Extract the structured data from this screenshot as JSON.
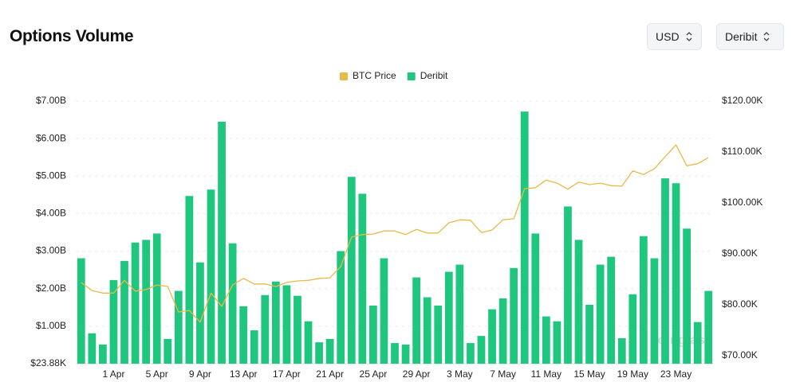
{
  "chart_data": {
    "type": "bar",
    "title": "Options Volume",
    "controls": [
      "USD",
      "Deribit"
    ],
    "watermark": "coinglass",
    "categories": [
      null,
      null,
      null,
      "1 Apr",
      null,
      null,
      null,
      "5 Apr",
      null,
      null,
      null,
      "9 Apr",
      null,
      null,
      null,
      "13 Apr",
      null,
      null,
      null,
      "17 Apr",
      null,
      null,
      null,
      "21 Apr",
      null,
      null,
      null,
      "25 Apr",
      null,
      null,
      null,
      "29 Apr",
      null,
      null,
      null,
      "3 May",
      null,
      null,
      null,
      "7 May",
      null,
      null,
      null,
      "11 May",
      null,
      null,
      null,
      "15 May",
      null,
      null,
      null,
      "19 May",
      null,
      null,
      null,
      "23 May",
      null,
      null,
      null
    ],
    "series": [
      {
        "name": "Deribit",
        "color": "#1fc67e",
        "values": [
          2810000000,
          810000000,
          510000000,
          2230000000,
          2740000000,
          3230000000,
          3300000000,
          3470000000,
          660000000,
          1940000000,
          4470000000,
          2700000000,
          4640000000,
          6450000000,
          3210000000,
          1530000000,
          890000000,
          1830000000,
          2190000000,
          2090000000,
          1810000000,
          1130000000,
          570000000,
          660000000,
          3000000000,
          4980000000,
          4530000000,
          1550000000,
          2810000000,
          550000000,
          510000000,
          2300000000,
          1770000000,
          1550000000,
          2450000000,
          2640000000,
          550000000,
          740000000,
          1450000000,
          1740000000,
          2550000000,
          6720000000,
          3470000000,
          1260000000,
          1130000000,
          4190000000,
          3300000000,
          1570000000,
          2640000000,
          2850000000,
          680000000,
          1850000000,
          3400000000,
          2810000000,
          4940000000,
          4810000000,
          3600000000,
          1110000000,
          1940000000
        ]
      },
      {
        "name": "BTC Price",
        "color": "#e9b949",
        "type": "line",
        "axis": "y2",
        "values": [
          84400,
          82800,
          82300,
          82300,
          84800,
          82700,
          83000,
          83900,
          83600,
          78600,
          78900,
          76600,
          82300,
          79700,
          83900,
          85200,
          84100,
          84100,
          83600,
          84400,
          84700,
          84800,
          85200,
          85300,
          87500,
          93300,
          93800,
          93900,
          94500,
          94500,
          93800,
          94800,
          94100,
          94100,
          96100,
          96700,
          96600,
          94200,
          94700,
          96700,
          96900,
          102800,
          103000,
          104500,
          103900,
          102700,
          104100,
          103600,
          103900,
          103400,
          103300,
          106300,
          105600,
          106700,
          109100,
          111400,
          107300,
          107700,
          108900
        ]
      }
    ],
    "legend_order": [
      1,
      0
    ],
    "ylim": [
      23880,
      7000000000
    ],
    "yticks": [
      {
        "value": 23880,
        "label": "$23.88K"
      },
      {
        "value": 1000000000,
        "label": "$1.00B"
      },
      {
        "value": 2000000000,
        "label": "$2.00B"
      },
      {
        "value": 3000000000,
        "label": "$3.00B"
      },
      {
        "value": 4000000000,
        "label": "$4.00B"
      },
      {
        "value": 5000000000,
        "label": "$5.00B"
      },
      {
        "value": 6000000000,
        "label": "$6.00B"
      },
      {
        "value": 7000000000,
        "label": "$7.00B"
      }
    ],
    "y2lim": [
      68450,
      120000
    ],
    "y2ticks": [
      {
        "value": 70000,
        "label": "$70.00K"
      },
      {
        "value": 80000,
        "label": "$80.00K"
      },
      {
        "value": 90000,
        "label": "$90.00K"
      },
      {
        "value": 100000,
        "label": "$100.00K"
      },
      {
        "value": 110000,
        "label": "$110.00K"
      },
      {
        "value": 120000,
        "label": "$120.00K"
      }
    ],
    "grid": true
  }
}
